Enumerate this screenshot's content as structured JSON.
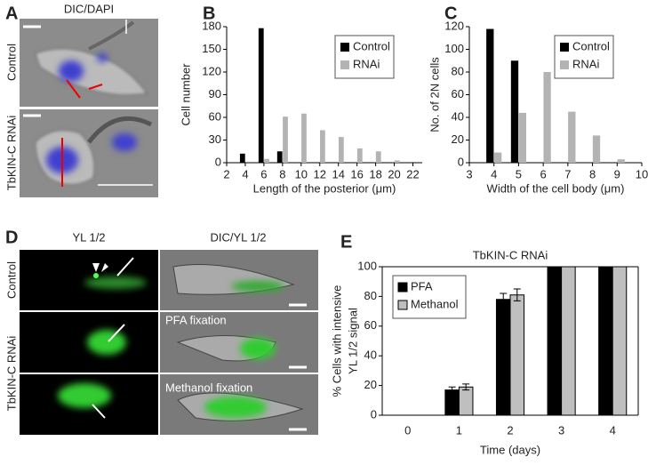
{
  "panels": {
    "A": "A",
    "D": "D"
  },
  "panel_a": {
    "title": "DIC/DAPI",
    "row_labels": [
      "Control",
      "TbKIN-C RNAi"
    ]
  },
  "panel_d": {
    "column_titles": [
      "YL 1/2",
      "DIC/YL 1/2"
    ],
    "row_labels": [
      "Control",
      "TbKIN-C RNAi"
    ],
    "annotations": [
      "PFA fixation",
      "Methanol fixation"
    ]
  },
  "chart_data": [
    {
      "type": "histbar",
      "label": "B",
      "x": [
        4,
        6,
        8,
        10,
        12,
        14,
        16,
        18,
        20
      ],
      "series": [
        {
          "name": "Control",
          "color": "#000000",
          "values": [
            12,
            178,
            15,
            null,
            null,
            null,
            null,
            null,
            null
          ]
        },
        {
          "name": "RNAi",
          "color": "#b3b3b3",
          "values": [
            null,
            5,
            61,
            65,
            43,
            34,
            19,
            15,
            3
          ]
        }
      ],
      "xlim": [
        2,
        23
      ],
      "xticks": [
        2,
        4,
        6,
        8,
        10,
        12,
        14,
        16,
        18,
        20,
        22
      ],
      "ylim": [
        0,
        180
      ],
      "yticks": [
        0,
        30,
        60,
        90,
        120,
        150,
        180
      ],
      "xlabel": "Length of the posterior (μm)",
      "ylabel": "Cell number",
      "legend": "top-right"
    },
    {
      "type": "histbar",
      "label": "C",
      "x": [
        4,
        5,
        6,
        7,
        8,
        9
      ],
      "series": [
        {
          "name": "Control",
          "color": "#000000",
          "values": [
            118,
            90,
            null,
            null,
            null,
            null
          ]
        },
        {
          "name": "RNAi",
          "color": "#b3b3b3",
          "values": [
            9,
            44,
            80,
            45,
            24,
            3
          ]
        }
      ],
      "xlim": [
        3,
        10
      ],
      "xticks": [
        3,
        4,
        5,
        6,
        7,
        8,
        9,
        10
      ],
      "ylim": [
        0,
        120
      ],
      "yticks": [
        0,
        20,
        40,
        60,
        80,
        100,
        120
      ],
      "xlabel": "Width of the cell body (μm)",
      "ylabel": "No. of 2N cells",
      "legend": "top-right"
    },
    {
      "type": "bar",
      "label": "E",
      "title": "TbKIN-C RNAi",
      "categories": [
        "0",
        "1",
        "2",
        "3",
        "4"
      ],
      "series": [
        {
          "name": "PFA",
          "color": "#000000",
          "values": [
            0,
            17,
            78,
            100,
            100
          ],
          "errors": [
            null,
            2,
            4,
            null,
            null
          ]
        },
        {
          "name": "Methanol",
          "color": "#bfbfbf",
          "values": [
            0,
            19,
            81,
            100,
            100
          ],
          "errors": [
            null,
            2,
            4,
            null,
            null
          ]
        }
      ],
      "ylim": [
        0,
        100
      ],
      "yticks": [
        0,
        20,
        40,
        60,
        80,
        100
      ],
      "xlabel": "Time (days)",
      "ylabel": [
        "% Cells with intensive",
        "YL 1/2 signal"
      ],
      "legend": "top-left"
    }
  ]
}
